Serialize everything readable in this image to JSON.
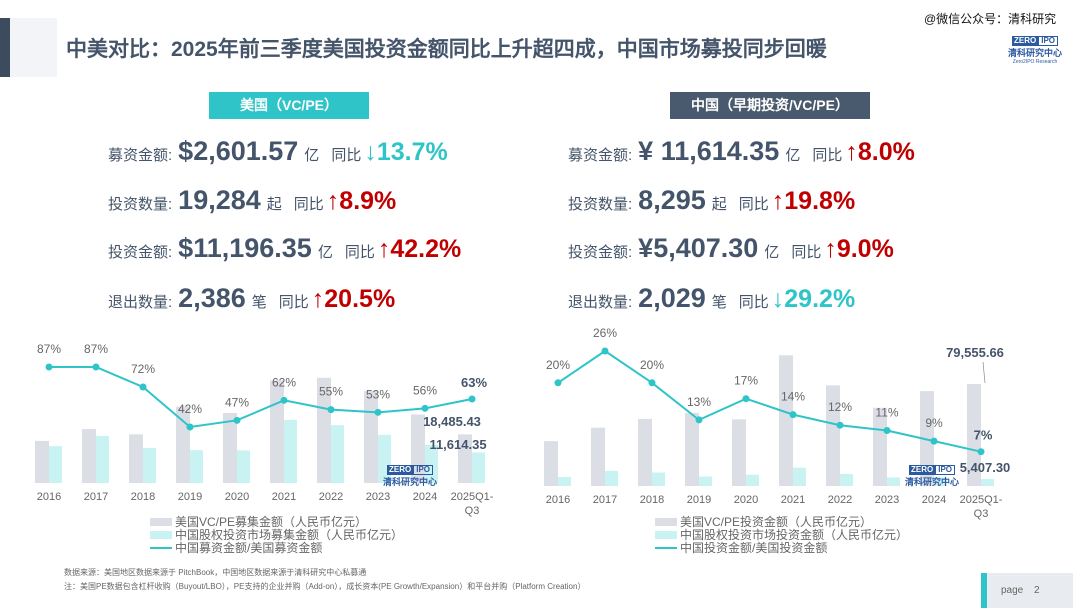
{
  "header": {
    "title": "中美对比：2025年前三季度美国投资金额同比上升超四成，中国市场募投同步回暖",
    "watermark": "@微信公众号：清科研究"
  },
  "logo": {
    "brand_a": "ZERO",
    "brand_num": "2",
    "brand_b": "IPO",
    "name_cn": "清科研究中心",
    "name_en": "Zero2IPO Research"
  },
  "us": {
    "tag": "美国（VC/PE）",
    "rows": [
      {
        "label": "募资金额:",
        "value": "$2,601.57",
        "unit": "亿",
        "yoy": "同比",
        "direction": "down",
        "change": "13.7%"
      },
      {
        "label": "投资数量:",
        "value": "19,284",
        "unit": "起",
        "yoy": "同比",
        "direction": "up",
        "change": "8.9%"
      },
      {
        "label": "投资金额:",
        "value": "$11,196.35",
        "unit": "亿",
        "yoy": "同比",
        "direction": "up",
        "change": " 42.2%"
      },
      {
        "label": "退出数量:",
        "value": "2,386",
        "unit": "笔",
        "yoy": "同比",
        "direction": "up",
        "change": "20.5%"
      }
    ]
  },
  "cn": {
    "tag": "中国（早期投资/VC/PE）",
    "rows": [
      {
        "label": "募资金额:",
        "value": "¥ 11,614.35",
        "unit": "亿",
        "yoy": "同比",
        "direction": "up",
        "change": "8.0%"
      },
      {
        "label": "投资数量:",
        "value": "8,295",
        "unit": "起",
        "yoy": "同比",
        "direction": "up",
        "change": "19.8%"
      },
      {
        "label": "投资金额:",
        "value": "¥5,407.30",
        "unit": "亿",
        "yoy": "同比",
        "direction": "up",
        "change": "9.0%"
      },
      {
        "label": "退出数量:",
        "value": "2,029",
        "unit": "笔",
        "yoy": "同比",
        "direction": "down",
        "change": "29.2%"
      }
    ]
  },
  "colors": {
    "us_bar": "#dcdee6",
    "cn_bar": "#c9f3f2",
    "line": "#2ec4c8",
    "up": "#c00000",
    "down": "#2ec4c8",
    "us_tag": "#2ec4c8",
    "cn_tag": "#4a5a6e"
  },
  "chart_data": [
    {
      "type": "bar+line",
      "categories": [
        "2016",
        "2017",
        "2018",
        "2019",
        "2020",
        "2021",
        "2022",
        "2023",
        "2024",
        "2025Q1-Q3"
      ],
      "series": [
        {
          "name": "美国VC/PE募集金额（人民币亿元）",
          "kind": "bar",
          "values": [
            16000,
            20500,
            18500,
            29000,
            26600,
            39000,
            40000,
            35000,
            26000,
            18485.43
          ]
        },
        {
          "name": "中国股权投资市场募集金额（人民币亿元）",
          "kind": "bar",
          "values": [
            14000,
            17900,
            13300,
            12500,
            12400,
            24000,
            22000,
            18300,
            14500,
            11614.35
          ]
        },
        {
          "name": "中国募资金额/美国募资金额",
          "kind": "line",
          "values": [
            87,
            87,
            72,
            42,
            47,
            62,
            55,
            53,
            56,
            63
          ],
          "labels": [
            "87%",
            "87%",
            "72%",
            "42%",
            "47%",
            "62%",
            "55%",
            "53%",
            "56%",
            "63%"
          ]
        }
      ],
      "value_labels": {
        "us_last": "18,485.43",
        "cn_last": "11,614.35"
      }
    },
    {
      "type": "bar+line",
      "categories": [
        "2016",
        "2017",
        "2018",
        "2019",
        "2020",
        "2021",
        "2022",
        "2023",
        "2024",
        "2025Q1-Q3"
      ],
      "series": [
        {
          "name": "美国VC/PE投资金额（人民币亿元）",
          "kind": "bar",
          "values": [
            35000,
            45500,
            52300,
            57000,
            52000,
            102000,
            78500,
            61000,
            74000,
            79555.66
          ]
        },
        {
          "name": "中国股权投资市场投资金额（人民币亿元）",
          "kind": "bar",
          "values": [
            7000,
            11800,
            10500,
            7400,
            8800,
            14300,
            9400,
            6700,
            6700,
            5407.3
          ]
        },
        {
          "name": "中国投资金额/美国投资金额",
          "kind": "line",
          "values": [
            20,
            26,
            20,
            13,
            17,
            14,
            12,
            11,
            9,
            7
          ],
          "labels": [
            "20%",
            "26%",
            "20%",
            "13%",
            "17%",
            "14%",
            "12%",
            "11%",
            "9%",
            "7%"
          ]
        }
      ],
      "value_labels": {
        "us_last": "79,555.66",
        "cn_last": "5,407.30"
      }
    }
  ],
  "footnotes": {
    "source": "数据来源：美国地区数据来源于 PitchBook，中国地区数据来源于清科研究中心私募通",
    "note": "注：美国PE数据包含杠杆收购（Buyout/LBO），PE支持的企业并购（Add-on），成长资本(PE Growth/Expansion）和平台并购（Platform Creation）"
  },
  "page": {
    "label": "page",
    "number": "2"
  }
}
